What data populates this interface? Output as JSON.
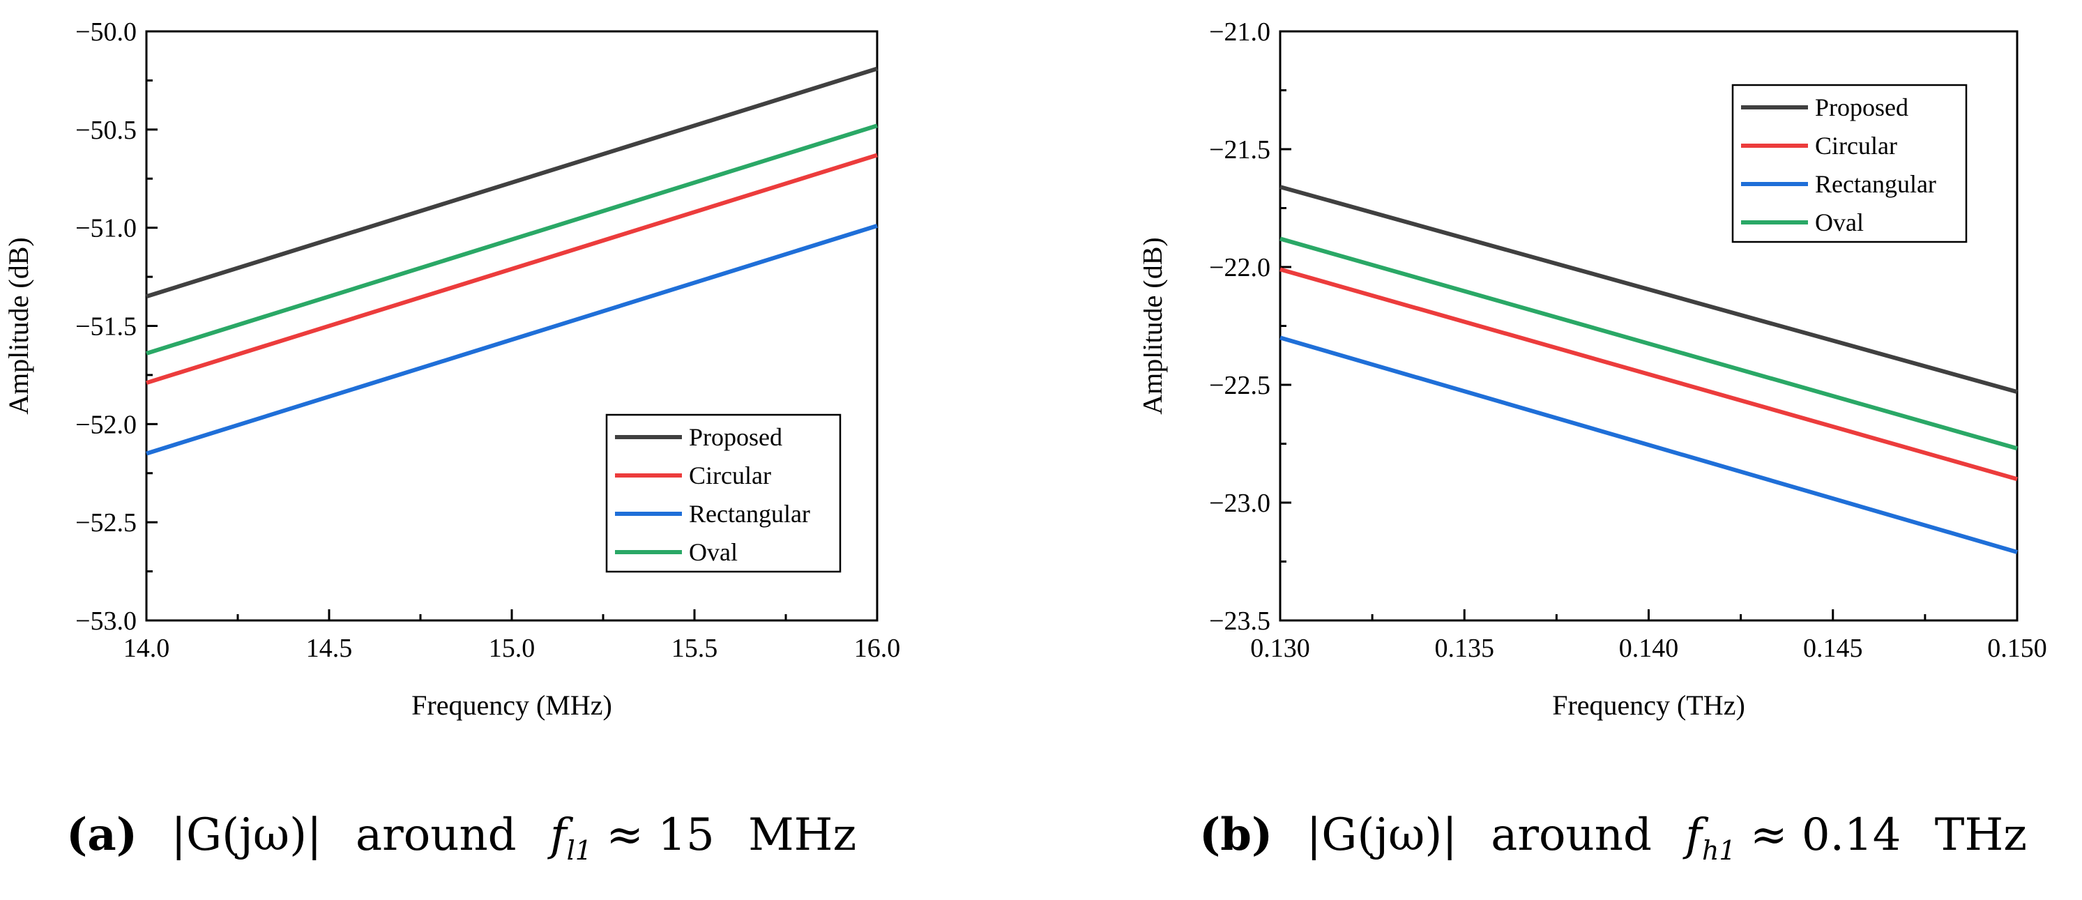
{
  "chart_data": [
    {
      "type": "line",
      "xlabel": "Frequency (MHz)",
      "ylabel": "Amplitude (dB)",
      "xlim": [
        14.0,
        16.0
      ],
      "ylim": [
        -53.0,
        -50.0
      ],
      "xticks": [
        "14.0",
        "14.5",
        "15.0",
        "15.5",
        "16.0"
      ],
      "yticks": [
        "−53.0",
        "−52.5",
        "−52.0",
        "−51.5",
        "−51.0",
        "−50.5",
        "−50.0"
      ],
      "legend_position": "bottom-right",
      "grid": false,
      "x": [
        14.0,
        16.0
      ],
      "series": [
        {
          "name": "Proposed",
          "color": "#404040",
          "values": [
            -51.35,
            -50.19
          ]
        },
        {
          "name": "Circular",
          "color": "#ec3c3c",
          "values": [
            -51.79,
            -50.63
          ]
        },
        {
          "name": "Rectangular",
          "color": "#1f6fd8",
          "values": [
            -52.15,
            -50.99
          ]
        },
        {
          "name": "Oval",
          "color": "#2aa866",
          "values": [
            -51.64,
            -50.48
          ]
        }
      ]
    },
    {
      "type": "line",
      "xlabel": "Frequency (THz)",
      "ylabel": "Amplitude (dB)",
      "xlim": [
        0.13,
        0.15
      ],
      "ylim": [
        -23.5,
        -21.0
      ],
      "xticks": [
        "0.130",
        "0.135",
        "0.140",
        "0.145",
        "0.150"
      ],
      "yticks": [
        "−23.5",
        "−23.0",
        "−22.5",
        "−22.0",
        "−21.5",
        "−21.0"
      ],
      "legend_position": "top-right",
      "grid": false,
      "x": [
        0.13,
        0.15
      ],
      "series": [
        {
          "name": "Proposed",
          "color": "#404040",
          "values": [
            -21.66,
            -22.53
          ]
        },
        {
          "name": "Circular",
          "color": "#ec3c3c",
          "values": [
            -22.01,
            -22.9
          ]
        },
        {
          "name": "Rectangular",
          "color": "#1f6fd8",
          "values": [
            -22.3,
            -23.21
          ]
        },
        {
          "name": "Oval",
          "color": "#2aa866",
          "values": [
            -21.88,
            -22.77
          ]
        }
      ]
    }
  ],
  "captions": [
    {
      "label": "(a)",
      "expr": "|G(jω)|",
      "word": "around",
      "freq_sym": "f",
      "freq_sub": "l1",
      "approx": "≈",
      "value": "15",
      "unit": "MHz"
    },
    {
      "label": "(b)",
      "expr": "|G(jω)|",
      "word": "around",
      "freq_sym": "f",
      "freq_sub": "h1",
      "approx": "≈",
      "value": "0.14",
      "unit": "THz"
    }
  ]
}
